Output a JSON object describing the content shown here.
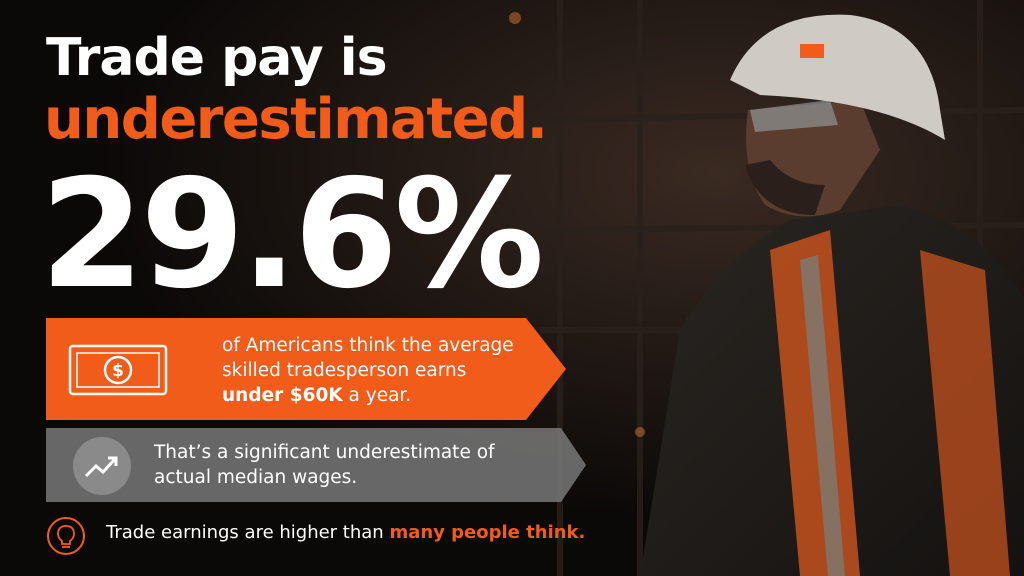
{
  "headline": {
    "line1": "Trade pay is",
    "line2": "underestimated."
  },
  "stat": "29.6%",
  "card_primary": {
    "text": "of Americans think the average skilled tradesperson earns",
    "highlight": "under $60K",
    "suffix": "a year."
  },
  "card_secondary": {
    "text": "That’s a significant underestimate of actual median wages."
  },
  "footer": {
    "text": "Trade earnings are higher than",
    "highlight": "many people think."
  }
}
